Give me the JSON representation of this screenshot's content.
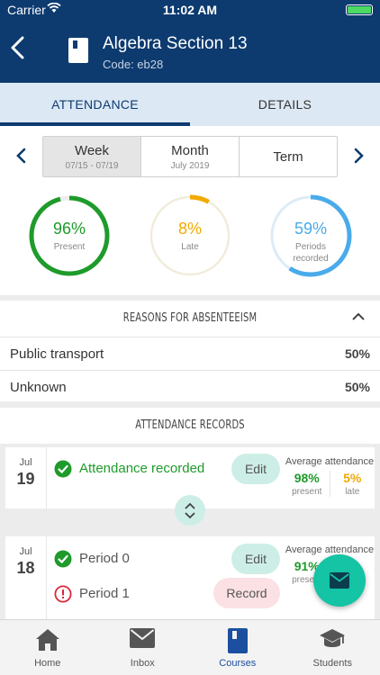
{
  "status_bar": {
    "carrier": "Carrier",
    "time": "11:02 AM"
  },
  "header": {
    "title": "Algebra Section 13",
    "code": "Code: eb28",
    "icon": "book-icon"
  },
  "tabs": [
    {
      "label": "ATTENDANCE",
      "active": true
    },
    {
      "label": "DETAILS",
      "active": false
    }
  ],
  "period_selector": {
    "options": [
      {
        "label": "Week",
        "sub": "07/15 - 07/19",
        "selected": true
      },
      {
        "label": "Month",
        "sub": "July 2019",
        "selected": false
      },
      {
        "label": "Term",
        "sub": "",
        "selected": false
      }
    ]
  },
  "stats": {
    "present": {
      "value": "96%",
      "caption": "Present",
      "fraction": 0.96,
      "color": "#1e9b2a"
    },
    "late": {
      "value": "8%",
      "caption": "Late",
      "fraction": 0.08,
      "color": "#f2a900"
    },
    "periods": {
      "value": "59%",
      "caption_line1": "Periods",
      "caption_line2": "recorded",
      "fraction": 0.59,
      "color": "#4aabea"
    }
  },
  "reasons": {
    "title": "REASONS FOR ABSENTEEISM",
    "items": [
      {
        "label": "Public transport",
        "value": "50%"
      },
      {
        "label": "Unknown",
        "value": "50%"
      }
    ]
  },
  "records": {
    "title": "ATTENDANCE RECORDS",
    "days": [
      {
        "month": "Jul",
        "day": "19",
        "lines": [
          {
            "status": "Attendance recorded",
            "action": "Edit"
          }
        ],
        "avg_title": "Average attendance",
        "present_value": "98%",
        "present_label": "present",
        "late_value": "5%",
        "late_label": "late"
      },
      {
        "month": "Jul",
        "day": "18",
        "lines": [
          {
            "status": "Period 0",
            "action": "Edit"
          },
          {
            "status": "Period 1",
            "action": "Record"
          }
        ],
        "avg_title": "Average attendance",
        "present_value": "91%",
        "present_label": "present"
      }
    ]
  },
  "tabbar": [
    {
      "label": "Home",
      "icon": "home-icon",
      "active": false
    },
    {
      "label": "Inbox",
      "icon": "inbox-icon",
      "active": false
    },
    {
      "label": "Courses",
      "icon": "book-icon",
      "active": true
    },
    {
      "label": "Students",
      "icon": "graduation-cap-icon",
      "active": false
    }
  ],
  "colors": {
    "primary": "#0d3b70",
    "accent": "#14c4a4",
    "present": "#1e9b2a",
    "late": "#f2a900",
    "periods": "#4aabea",
    "absent": "#d9283b"
  }
}
